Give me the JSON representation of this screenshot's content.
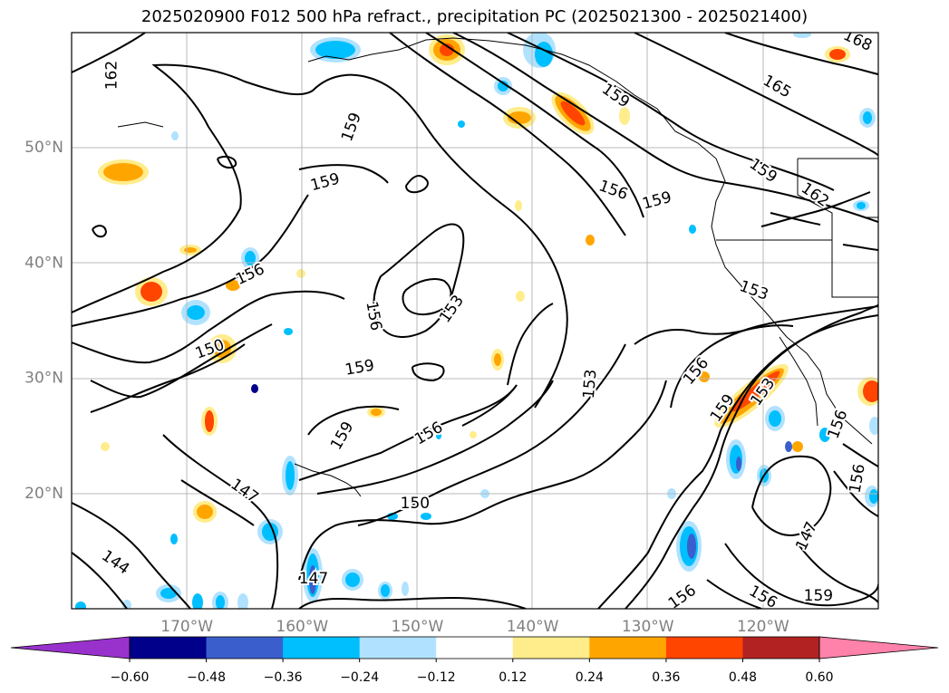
{
  "title": "2025020900 F012 500 hPa refract., precipitation PC (2025021300 - 2025021400)",
  "map": {
    "lon_min": -180,
    "lon_max": -110,
    "lat_min": 10,
    "lat_max": 60,
    "lat_labels": [
      {
        "lat": 50,
        "text": "50°N"
      },
      {
        "lat": 40,
        "text": "40°N"
      },
      {
        "lat": 30,
        "text": "30°N"
      },
      {
        "lat": 20,
        "text": "20°N"
      }
    ],
    "lon_labels": [
      {
        "lon": -170,
        "text": "170°W"
      },
      {
        "lon": -160,
        "text": "160°W"
      },
      {
        "lon": -150,
        "text": "150°W"
      },
      {
        "lon": -140,
        "text": "140°W"
      },
      {
        "lon": -130,
        "text": "130°W"
      },
      {
        "lon": -120,
        "text": "120°W"
      }
    ],
    "contour_labels": [
      {
        "text": "162",
        "lon": -176.5,
        "lat": 56.3,
        "rot": -90
      },
      {
        "text": "159",
        "lon": -155.7,
        "lat": 51.8,
        "rot": -70
      },
      {
        "text": "159",
        "lon": -158.0,
        "lat": 47.0,
        "rot": -15
      },
      {
        "text": "156",
        "lon": -164.5,
        "lat": 39.0,
        "rot": -25
      },
      {
        "text": "150",
        "lon": -168.0,
        "lat": 32.5,
        "rot": -20
      },
      {
        "text": "159",
        "lon": -155.0,
        "lat": 30.9,
        "rot": -10
      },
      {
        "text": "159",
        "lon": -156.5,
        "lat": 25.0,
        "rot": -60
      },
      {
        "text": "156",
        "lon": -149.0,
        "lat": 25.2,
        "rot": -30
      },
      {
        "text": "147",
        "lon": -165.0,
        "lat": 20.2,
        "rot": 35
      },
      {
        "text": "150",
        "lon": -150.2,
        "lat": 19.1,
        "rot": 0
      },
      {
        "text": "144",
        "lon": -176.2,
        "lat": 14.0,
        "rot": 35
      },
      {
        "text": "147",
        "lon": -159.0,
        "lat": 12.6,
        "rot": 0
      },
      {
        "text": "156",
        "lon": -153.8,
        "lat": 35.4,
        "rot": 80
      },
      {
        "text": "153",
        "lon": -147.0,
        "lat": 36.0,
        "rot": -55
      },
      {
        "text": "153",
        "lon": -135.0,
        "lat": 29.5,
        "rot": -85
      },
      {
        "text": "159",
        "lon": -132.8,
        "lat": 54.5,
        "rot": 35
      },
      {
        "text": "156",
        "lon": -133.0,
        "lat": 46.3,
        "rot": 20
      },
      {
        "text": "159",
        "lon": -129.2,
        "lat": 45.4,
        "rot": -15
      },
      {
        "text": "165",
        "lon": -118.8,
        "lat": 55.3,
        "rot": 30
      },
      {
        "text": "168",
        "lon": -111.8,
        "lat": 59.3,
        "rot": 25
      },
      {
        "text": "159",
        "lon": -120.0,
        "lat": 48.0,
        "rot": 35
      },
      {
        "text": "162",
        "lon": -115.5,
        "lat": 45.9,
        "rot": 35
      },
      {
        "text": "153",
        "lon": -120.8,
        "lat": 37.6,
        "rot": 20
      },
      {
        "text": "156",
        "lon": -125.8,
        "lat": 30.6,
        "rot": -50
      },
      {
        "text": "159",
        "lon": -123.5,
        "lat": 27.4,
        "rot": -55
      },
      {
        "text": "153",
        "lon": -120.0,
        "lat": 28.8,
        "rot": -55
      },
      {
        "text": "156",
        "lon": -113.5,
        "lat": 26.0,
        "rot": -70
      },
      {
        "text": "156",
        "lon": -111.8,
        "lat": 21.3,
        "rot": -80
      },
      {
        "text": "147",
        "lon": -116.2,
        "lat": 16.3,
        "rot": -65
      },
      {
        "text": "156",
        "lon": -120.0,
        "lat": 11.0,
        "rot": 30
      },
      {
        "text": "159",
        "lon": -115.2,
        "lat": 11.1,
        "rot": 0
      },
      {
        "text": "156",
        "lon": -127.0,
        "lat": 11.0,
        "rot": -35
      }
    ]
  },
  "colorbar": {
    "colors": [
      "#9932cc",
      "#00008b",
      "#3a5fcd",
      "#00bfff",
      "#b0e2ff",
      "#ffffff",
      "#ffec8b",
      "#ffa500",
      "#ff4500",
      "#b22222",
      "#ff82ab"
    ],
    "ticks": [
      "−0.60",
      "−0.48",
      "−0.36",
      "−0.24",
      "−0.12",
      "0.12",
      "0.24",
      "0.36",
      "0.48",
      "0.60"
    ]
  }
}
